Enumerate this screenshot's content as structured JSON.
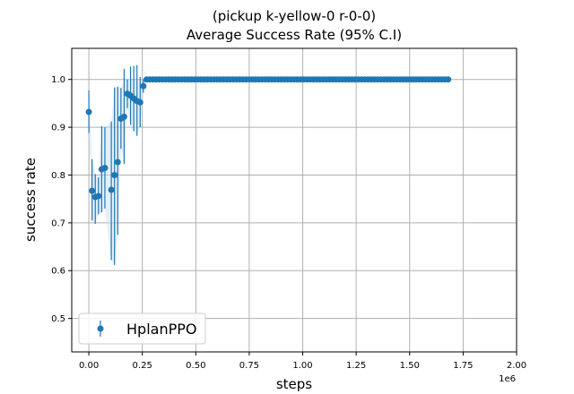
{
  "chart_data": {
    "type": "scatter",
    "title": "(pickup k-yellow-0 r-0-0)",
    "subtitle": "Average Success Rate (95% C.I)",
    "xlabel": "steps",
    "ylabel": "success rate",
    "x_offset_text": "1e6",
    "xlim": [
      -80000,
      2000000
    ],
    "ylim": [
      0.43,
      1.065
    ],
    "x_ticks": [
      0,
      250000,
      500000,
      750000,
      1000000,
      1250000,
      1500000,
      1750000,
      2000000
    ],
    "x_tick_labels": [
      "0.00",
      "0.25",
      "0.50",
      "0.75",
      "1.00",
      "1.25",
      "1.50",
      "1.75",
      "2.00"
    ],
    "y_ticks": [
      0.5,
      0.6,
      0.7,
      0.8,
      0.9,
      1.0
    ],
    "y_tick_labels": [
      "0.5",
      "0.6",
      "0.7",
      "0.8",
      "0.9",
      "1.0"
    ],
    "grid": true,
    "legend_position": "lower-left",
    "colors": {
      "series": "#1f77b4",
      "band": "#c6dbef"
    },
    "series": [
      {
        "name": "HplanPPO",
        "points": [
          {
            "x": 0,
            "y": 0.932,
            "lo": 0.888,
            "hi": 0.977
          },
          {
            "x": 15000,
            "y": 0.767,
            "lo": 0.705,
            "hi": 0.833
          },
          {
            "x": 30000,
            "y": 0.754,
            "lo": 0.698,
            "hi": 0.802
          },
          {
            "x": 45000,
            "y": 0.756,
            "lo": 0.718,
            "hi": 0.795
          },
          {
            "x": 60000,
            "y": 0.812,
            "lo": 0.722,
            "hi": 0.902
          },
          {
            "x": 75000,
            "y": 0.815,
            "lo": 0.73,
            "hi": 0.9
          },
          {
            "x": 105000,
            "y": 0.769,
            "lo": 0.622,
            "hi": 0.912
          },
          {
            "x": 120000,
            "y": 0.8,
            "lo": 0.612,
            "hi": 0.983
          },
          {
            "x": 135000,
            "y": 0.827,
            "lo": 0.675,
            "hi": 0.985
          },
          {
            "x": 150000,
            "y": 0.918,
            "lo": 0.855,
            "hi": 0.982
          },
          {
            "x": 165000,
            "y": 0.922,
            "lo": 0.823,
            "hi": 1.022
          },
          {
            "x": 180000,
            "y": 0.97,
            "lo": 0.94,
            "hi": 1.0
          },
          {
            "x": 195000,
            "y": 0.966,
            "lo": 0.905,
            "hi": 1.027
          },
          {
            "x": 210000,
            "y": 0.96,
            "lo": 0.892,
            "hi": 1.028
          },
          {
            "x": 225000,
            "y": 0.955,
            "lo": 0.882,
            "hi": 1.03
          },
          {
            "x": 240000,
            "y": 0.952,
            "lo": 0.9,
            "hi": 1.005
          },
          {
            "x": 255000,
            "y": 0.986,
            "lo": 0.972,
            "hi": 1.0
          }
        ],
        "plateau": {
          "x_start": 270000,
          "x_end": 1680000,
          "x_step": 15000,
          "y": 1.0
        }
      }
    ]
  }
}
